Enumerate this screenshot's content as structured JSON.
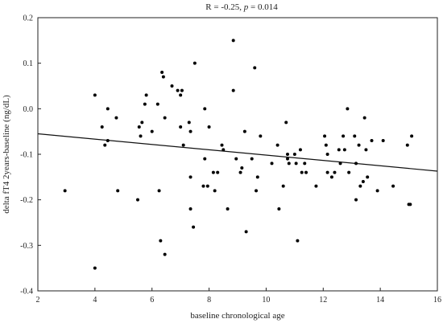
{
  "chart_data": {
    "type": "scatter",
    "title_prefix": "R = -0.25, ",
    "title_italic": "p",
    "title_suffix": " = 0.014",
    "xlabel": "baseline chronological age",
    "ylabel": "delta fT4 2years-baseline (ng/dL)",
    "xlim": [
      2,
      16
    ],
    "ylim": [
      -0.4,
      0.2
    ],
    "xticks": [
      2,
      4,
      6,
      8,
      10,
      12,
      14,
      16
    ],
    "yticks": [
      -0.4,
      -0.3,
      -0.2,
      -0.1,
      0.0,
      0.1,
      0.2
    ],
    "ytick_labels": [
      "-0.4",
      "-0.3",
      "-0.2",
      "-0.1",
      "0.0",
      "0.1",
      "0.2"
    ],
    "grid": false,
    "regression_line": {
      "x": [
        2,
        16
      ],
      "y": [
        -0.055,
        -0.137
      ]
    },
    "points": [
      [
        2.95,
        -0.18
      ],
      [
        4.0,
        0.03
      ],
      [
        4.0,
        -0.35
      ],
      [
        4.25,
        -0.04
      ],
      [
        4.35,
        -0.08
      ],
      [
        4.45,
        0.0
      ],
      [
        4.45,
        -0.07
      ],
      [
        4.75,
        -0.02
      ],
      [
        4.8,
        -0.18
      ],
      [
        5.5,
        -0.2
      ],
      [
        5.55,
        -0.04
      ],
      [
        5.6,
        -0.06
      ],
      [
        5.65,
        -0.03
      ],
      [
        5.75,
        0.01
      ],
      [
        5.8,
        0.03
      ],
      [
        6.0,
        -0.05
      ],
      [
        6.2,
        0.01
      ],
      [
        6.25,
        -0.18
      ],
      [
        6.3,
        -0.29
      ],
      [
        6.35,
        0.08
      ],
      [
        6.4,
        0.07
      ],
      [
        6.45,
        -0.02
      ],
      [
        6.45,
        -0.32
      ],
      [
        6.7,
        0.05
      ],
      [
        6.9,
        0.04
      ],
      [
        7.0,
        0.03
      ],
      [
        7.0,
        -0.04
      ],
      [
        7.05,
        0.04
      ],
      [
        7.1,
        -0.08
      ],
      [
        7.3,
        -0.03
      ],
      [
        7.35,
        -0.05
      ],
      [
        7.35,
        -0.15
      ],
      [
        7.35,
        -0.22
      ],
      [
        7.45,
        -0.26
      ],
      [
        7.5,
        0.1
      ],
      [
        7.8,
        -0.17
      ],
      [
        7.85,
        0.0
      ],
      [
        7.85,
        -0.11
      ],
      [
        7.95,
        -0.17
      ],
      [
        8.0,
        -0.04
      ],
      [
        8.15,
        -0.14
      ],
      [
        8.2,
        -0.18
      ],
      [
        8.3,
        -0.14
      ],
      [
        8.45,
        -0.08
      ],
      [
        8.5,
        -0.09
      ],
      [
        8.65,
        -0.22
      ],
      [
        8.85,
        0.15
      ],
      [
        8.85,
        0.04
      ],
      [
        8.95,
        -0.11
      ],
      [
        9.1,
        -0.14
      ],
      [
        9.15,
        -0.13
      ],
      [
        9.25,
        -0.05
      ],
      [
        9.3,
        -0.27
      ],
      [
        9.5,
        -0.11
      ],
      [
        9.6,
        0.09
      ],
      [
        9.65,
        -0.18
      ],
      [
        9.7,
        -0.15
      ],
      [
        9.8,
        -0.06
      ],
      [
        10.2,
        -0.12
      ],
      [
        10.4,
        -0.08
      ],
      [
        10.45,
        -0.22
      ],
      [
        10.6,
        -0.17
      ],
      [
        10.7,
        -0.03
      ],
      [
        10.75,
        -0.1
      ],
      [
        10.75,
        -0.11
      ],
      [
        10.8,
        -0.12
      ],
      [
        11.0,
        -0.1
      ],
      [
        11.05,
        -0.12
      ],
      [
        11.1,
        -0.29
      ],
      [
        11.2,
        -0.09
      ],
      [
        11.25,
        -0.14
      ],
      [
        11.35,
        -0.12
      ],
      [
        11.4,
        -0.14
      ],
      [
        11.75,
        -0.17
      ],
      [
        12.05,
        -0.06
      ],
      [
        12.1,
        -0.08
      ],
      [
        12.15,
        -0.1
      ],
      [
        12.15,
        -0.14
      ],
      [
        12.3,
        -0.15
      ],
      [
        12.4,
        -0.14
      ],
      [
        12.55,
        -0.09
      ],
      [
        12.6,
        -0.12
      ],
      [
        12.7,
        -0.06
      ],
      [
        12.75,
        -0.09
      ],
      [
        12.85,
        0.0
      ],
      [
        12.9,
        -0.14
      ],
      [
        13.1,
        -0.06
      ],
      [
        13.15,
        -0.12
      ],
      [
        13.15,
        -0.2
      ],
      [
        13.25,
        -0.08
      ],
      [
        13.3,
        -0.17
      ],
      [
        13.4,
        -0.16
      ],
      [
        13.45,
        -0.02
      ],
      [
        13.5,
        -0.09
      ],
      [
        13.55,
        -0.15
      ],
      [
        13.7,
        -0.07
      ],
      [
        13.9,
        -0.18
      ],
      [
        14.1,
        -0.07
      ],
      [
        14.45,
        -0.17
      ],
      [
        14.95,
        -0.08
      ],
      [
        15.0,
        -0.21
      ],
      [
        15.05,
        -0.21
      ],
      [
        15.1,
        -0.06
      ]
    ]
  }
}
